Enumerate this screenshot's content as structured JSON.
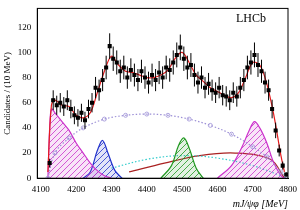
{
  "chart_data": {
    "type": "scatter",
    "annotation": "LHCb",
    "x_label": "mJ/ψφ [MeV]",
    "y_label": "Candidates / (10 MeV)",
    "xlim": [
      4090,
      4800
    ],
    "xticks": [
      4100,
      4200,
      4300,
      4400,
      4500,
      4600,
      4700,
      4800
    ],
    "ylim": [
      0,
      135
    ],
    "yticks": [
      0,
      20,
      40,
      60,
      80,
      100,
      120
    ],
    "grid": false,
    "series": [
      {
        "type": "scatter",
        "color": "#000000",
        "marker": "square",
        "x": [
          4125,
          4135,
          4145,
          4155,
          4165,
          4175,
          4185,
          4195,
          4205,
          4215,
          4225,
          4235,
          4245,
          4255,
          4265,
          4275,
          4285,
          4295,
          4305,
          4315,
          4325,
          4335,
          4345,
          4355,
          4365,
          4375,
          4385,
          4395,
          4405,
          4415,
          4425,
          4435,
          4445,
          4455,
          4465,
          4475,
          4485,
          4495,
          4505,
          4515,
          4525,
          4535,
          4545,
          4555,
          4565,
          4575,
          4585,
          4595,
          4605,
          4615,
          4625,
          4635,
          4645,
          4655,
          4665,
          4675,
          4685,
          4695,
          4705,
          4715,
          4725,
          4735,
          4745,
          4755,
          4765,
          4775,
          4785,
          4795
        ],
        "values": [
          12,
          62,
          58,
          60,
          57,
          62,
          55,
          50,
          48,
          52,
          46,
          55,
          60,
          72,
          70,
          78,
          88,
          105,
          95,
          92,
          85,
          88,
          80,
          86,
          82,
          78,
          85,
          80,
          76,
          82,
          78,
          84,
          80,
          88,
          86,
          92,
          98,
          104,
          95,
          88,
          90,
          82,
          76,
          80,
          72,
          75,
          70,
          68,
          72,
          66,
          65,
          62,
          68,
          65,
          72,
          78,
          88,
          92,
          98,
          90,
          85,
          76,
          70,
          55,
          38,
          22,
          10,
          3
        ],
        "errors": [
          3.5,
          7.9,
          7.6,
          7.7,
          7.5,
          7.9,
          7.4,
          7.1,
          6.9,
          7.2,
          6.8,
          7.4,
          7.7,
          8.5,
          8.4,
          8.8,
          9.4,
          10.2,
          9.7,
          9.6,
          9.2,
          9.4,
          8.9,
          9.3,
          9.1,
          8.8,
          9.2,
          8.9,
          8.7,
          9.1,
          8.8,
          9.2,
          8.9,
          9.4,
          9.3,
          9.6,
          9.9,
          10.2,
          9.7,
          9.4,
          9.5,
          9.1,
          8.7,
          8.9,
          8.5,
          8.7,
          8.4,
          8.2,
          8.5,
          8.1,
          8.1,
          7.9,
          8.2,
          8.1,
          8.5,
          8.8,
          9.4,
          9.6,
          9.9,
          9.5,
          9.2,
          8.7,
          8.4,
          7.4,
          6.2,
          4.7,
          3.2,
          1.7
        ]
      },
      {
        "type": "line",
        "color": "#e41a1c",
        "line_style": "solid",
        "x": [
          4120,
          4130,
          4140,
          4160,
          4180,
          4200,
          4220,
          4240,
          4260,
          4280,
          4300,
          4320,
          4340,
          4360,
          4380,
          4400,
          4420,
          4440,
          4460,
          4480,
          4500,
          4520,
          4540,
          4560,
          4580,
          4600,
          4620,
          4640,
          4660,
          4680,
          4700,
          4720,
          4740,
          4760,
          4780,
          4790
        ],
        "values": [
          5,
          58,
          62,
          58,
          57,
          50,
          48,
          52,
          68,
          85,
          97,
          90,
          85,
          84,
          82,
          80,
          80,
          82,
          86,
          95,
          100,
          92,
          82,
          77,
          72,
          69,
          66,
          64,
          68,
          80,
          92,
          90,
          75,
          50,
          18,
          5
        ]
      },
      {
        "type": "line",
        "color": "#9c8fd6",
        "line_style": "dotted",
        "marker": "circle",
        "x": [
          4120,
          4140,
          4180,
          4220,
          4280,
          4340,
          4400,
          4460,
          4520,
          4580,
          4640,
          4700,
          4740,
          4780,
          4795
        ],
        "values": [
          0,
          20,
          32,
          40,
          47,
          50,
          51,
          50,
          47,
          42,
          35,
          25,
          17,
          5,
          0
        ]
      },
      {
        "type": "area",
        "color": "#cc33cc",
        "line_style": "solid",
        "x": [
          4120,
          4125,
          4130,
          4140,
          4160,
          4180,
          4200,
          4220,
          4240,
          4260,
          4280,
          4300
        ],
        "values": [
          0,
          40,
          55,
          52,
          45,
          38,
          28,
          20,
          12,
          6,
          2,
          0
        ]
      },
      {
        "type": "area",
        "color": "#2233cc",
        "line_style": "solid",
        "x": [
          4220,
          4240,
          4260,
          4275,
          4290,
          4310,
          4330
        ],
        "values": [
          0,
          5,
          22,
          30,
          20,
          6,
          0
        ]
      },
      {
        "type": "area",
        "color": "#229922",
        "line_style": "solid",
        "x": [
          4440,
          4470,
          4490,
          4505,
          4520,
          4540,
          4560
        ],
        "values": [
          0,
          10,
          26,
          32,
          24,
          8,
          0
        ]
      },
      {
        "type": "area",
        "color": "#cc33cc",
        "line_style": "solid",
        "x": [
          4600,
          4640,
          4670,
          4690,
          4705,
          4720,
          4740,
          4760,
          4780,
          4790
        ],
        "values": [
          0,
          10,
          25,
          38,
          45,
          40,
          28,
          12,
          2,
          0
        ]
      },
      {
        "type": "line",
        "color": "#33cccc",
        "line_style": "dotted",
        "x": [
          4300,
          4400,
          4500,
          4600,
          4700,
          4780
        ],
        "values": [
          8,
          15,
          18,
          16,
          10,
          2
        ]
      },
      {
        "type": "line",
        "color": "#aa2222",
        "line_style": "solid",
        "x": [
          4350,
          4450,
          4550,
          4650,
          4750,
          4790
        ],
        "values": [
          5,
          12,
          18,
          20,
          15,
          0
        ]
      }
    ]
  }
}
